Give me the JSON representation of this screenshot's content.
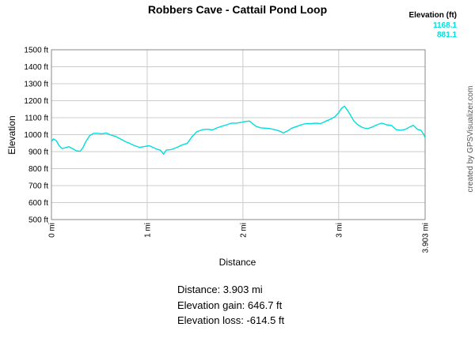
{
  "chart_data": {
    "type": "line",
    "title": "Robbers Cave - Cattail Pond Loop",
    "xlabel": "Distance",
    "ylabel": "Elevation",
    "xlim": [
      0,
      3.903
    ],
    "ylim": [
      500,
      1500
    ],
    "x_tick_values": [
      0,
      1,
      2,
      3,
      3.903
    ],
    "x_tick_labels": [
      "0 mi",
      "1 mi",
      "2 mi",
      "3 mi",
      "3.903 mi"
    ],
    "y_tick_values": [
      500,
      600,
      700,
      800,
      900,
      1000,
      1100,
      1200,
      1300,
      1400,
      1500
    ],
    "y_tick_labels": [
      "500 ft",
      "600 ft",
      "700 ft",
      "800 ft",
      "900 ft",
      "1000 ft",
      "1100 ft",
      "1200 ft",
      "1300 ft",
      "1400 ft",
      "1500 ft"
    ],
    "grid": true,
    "legend": {
      "title": "Elevation (ft)",
      "values": [
        "1168.1",
        "881.1"
      ],
      "color": "#00e0e0",
      "placement": "top-right"
    },
    "line_color": "#00dede",
    "series": [
      {
        "points": [
          [
            0.0,
            958
          ],
          [
            0.02,
            975
          ],
          [
            0.05,
            965
          ],
          [
            0.08,
            935
          ],
          [
            0.11,
            918
          ],
          [
            0.14,
            922
          ],
          [
            0.18,
            930
          ],
          [
            0.22,
            918
          ],
          [
            0.26,
            905
          ],
          [
            0.3,
            902
          ],
          [
            0.33,
            925
          ],
          [
            0.36,
            960
          ],
          [
            0.4,
            995
          ],
          [
            0.44,
            1008
          ],
          [
            0.48,
            1008
          ],
          [
            0.53,
            1005
          ],
          [
            0.57,
            1010
          ],
          [
            0.62,
            998
          ],
          [
            0.67,
            990
          ],
          [
            0.72,
            975
          ],
          [
            0.77,
            960
          ],
          [
            0.82,
            948
          ],
          [
            0.87,
            935
          ],
          [
            0.92,
            925
          ],
          [
            0.97,
            930
          ],
          [
            1.02,
            935
          ],
          [
            1.06,
            925
          ],
          [
            1.1,
            915
          ],
          [
            1.14,
            908
          ],
          [
            1.17,
            885
          ],
          [
            1.2,
            910
          ],
          [
            1.25,
            912
          ],
          [
            1.31,
            925
          ],
          [
            1.36,
            938
          ],
          [
            1.42,
            950
          ],
          [
            1.47,
            990
          ],
          [
            1.52,
            1018
          ],
          [
            1.58,
            1030
          ],
          [
            1.63,
            1032
          ],
          [
            1.68,
            1028
          ],
          [
            1.73,
            1040
          ],
          [
            1.78,
            1050
          ],
          [
            1.83,
            1058
          ],
          [
            1.88,
            1068
          ],
          [
            1.93,
            1068
          ],
          [
            1.98,
            1072
          ],
          [
            2.03,
            1078
          ],
          [
            2.07,
            1080
          ],
          [
            2.1,
            1065
          ],
          [
            2.14,
            1048
          ],
          [
            2.19,
            1040
          ],
          [
            2.24,
            1038
          ],
          [
            2.29,
            1035
          ],
          [
            2.33,
            1030
          ],
          [
            2.38,
            1022
          ],
          [
            2.42,
            1010
          ],
          [
            2.46,
            1020
          ],
          [
            2.51,
            1038
          ],
          [
            2.56,
            1048
          ],
          [
            2.61,
            1058
          ],
          [
            2.66,
            1065
          ],
          [
            2.71,
            1065
          ],
          [
            2.76,
            1068
          ],
          [
            2.81,
            1065
          ],
          [
            2.86,
            1078
          ],
          [
            2.91,
            1090
          ],
          [
            2.96,
            1105
          ],
          [
            3.0,
            1130
          ],
          [
            3.03,
            1155
          ],
          [
            3.06,
            1168
          ],
          [
            3.09,
            1145
          ],
          [
            3.12,
            1118
          ],
          [
            3.16,
            1080
          ],
          [
            3.2,
            1058
          ],
          [
            3.25,
            1042
          ],
          [
            3.3,
            1035
          ],
          [
            3.35,
            1045
          ],
          [
            3.4,
            1058
          ],
          [
            3.45,
            1068
          ],
          [
            3.5,
            1058
          ],
          [
            3.55,
            1055
          ],
          [
            3.6,
            1030
          ],
          [
            3.65,
            1025
          ],
          [
            3.7,
            1032
          ],
          [
            3.75,
            1048
          ],
          [
            3.78,
            1055
          ],
          [
            3.82,
            1032
          ],
          [
            3.86,
            1025
          ],
          [
            3.89,
            1000
          ],
          [
            3.903,
            982
          ]
        ]
      }
    ]
  },
  "credit": "created by GPSVisualizer.com",
  "stats": {
    "distance": "Distance: 3.903 mi",
    "gain": "Elevation gain: 646.7 ft",
    "loss": "Elevation loss: -614.5 ft"
  }
}
